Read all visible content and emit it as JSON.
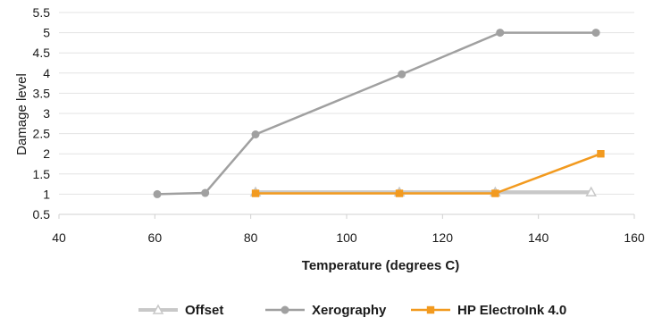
{
  "chart_data": {
    "type": "line",
    "title": "",
    "xlabel": "Temperature (degrees C)",
    "ylabel": "Damage level",
    "xlim": [
      40,
      160
    ],
    "ylim": [
      0.5,
      5.5
    ],
    "x_ticks": [
      40,
      60,
      80,
      100,
      120,
      140,
      160
    ],
    "y_ticks": [
      0.5,
      1,
      1.5,
      2,
      2.5,
      3,
      3.5,
      4,
      4.5,
      5,
      5.5
    ],
    "x_tick_labels": [
      "40",
      "60",
      "80",
      "100",
      "120",
      "140",
      "160"
    ],
    "y_tick_labels": [
      "0.5",
      "1",
      "1.5",
      "2",
      "2.5",
      "3",
      "3.5",
      "4",
      "4.5",
      "5",
      "5.5"
    ],
    "grid": "horizontal",
    "legend_position": "bottom",
    "series": [
      {
        "name": "Offset",
        "color": "#c8c8c8",
        "marker": "triangle-open",
        "points": [
          [
            81,
            1.05
          ],
          [
            111,
            1.05
          ],
          [
            131,
            1.05
          ],
          [
            151,
            1.05
          ]
        ]
      },
      {
        "name": "Xerography",
        "color": "#a0a0a0",
        "marker": "circle",
        "points": [
          [
            60.5,
            1
          ],
          [
            70.5,
            1.03
          ],
          [
            81,
            2.48
          ],
          [
            111.5,
            3.97
          ],
          [
            132,
            5
          ],
          [
            152,
            5
          ]
        ]
      },
      {
        "name": "HP ElectroInk 4.0",
        "color": "#f29a1f",
        "marker": "square",
        "points": [
          [
            81,
            1.02
          ],
          [
            111,
            1.02
          ],
          [
            131,
            1.02
          ],
          [
            153,
            2
          ]
        ]
      }
    ]
  }
}
